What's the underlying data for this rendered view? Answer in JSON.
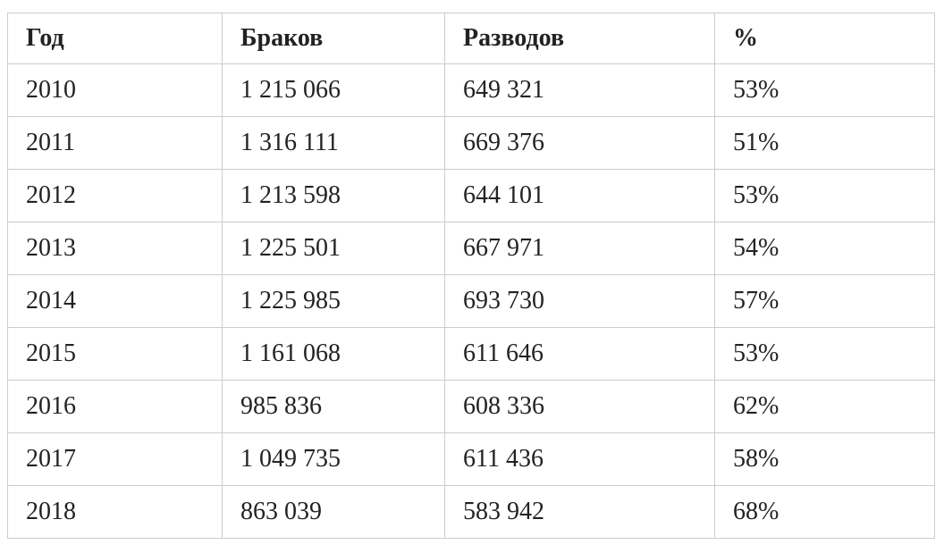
{
  "colors": {
    "background": "#ffffff",
    "border": "#cccccc",
    "text": "#222222"
  },
  "table": {
    "headers": [
      "Год",
      "Браков",
      "Разводов",
      "%"
    ],
    "rows": [
      [
        "2010",
        "1 215 066",
        "649 321",
        "53%"
      ],
      [
        "2011",
        "1 316 111",
        "669 376",
        "51%"
      ],
      [
        "2012",
        "1 213 598",
        "644 101",
        "53%"
      ],
      [
        "2013",
        "1 225 501",
        "667 971",
        "54%"
      ],
      [
        "2014",
        "1 225 985",
        "693 730",
        "57%"
      ],
      [
        "2015",
        "1 161 068",
        "611 646",
        "53%"
      ],
      [
        "2016",
        "985 836",
        "608 336",
        "62%"
      ],
      [
        "2017",
        "1 049 735",
        "611 436",
        "58%"
      ],
      [
        "2018",
        "863 039",
        "583 942",
        "68%"
      ]
    ]
  },
  "chart_data": {
    "type": "table",
    "columns": [
      "Год",
      "Браков",
      "Разводов",
      "%"
    ],
    "rows": [
      {
        "year": 2010,
        "marriages": 1215066,
        "divorces": 649321,
        "percent": 53
      },
      {
        "year": 2011,
        "marriages": 1316111,
        "divorces": 669376,
        "percent": 51
      },
      {
        "year": 2012,
        "marriages": 1213598,
        "divorces": 644101,
        "percent": 53
      },
      {
        "year": 2013,
        "marriages": 1225501,
        "divorces": 667971,
        "percent": 54
      },
      {
        "year": 2014,
        "marriages": 1225985,
        "divorces": 693730,
        "percent": 57
      },
      {
        "year": 2015,
        "marriages": 1161068,
        "divorces": 611646,
        "percent": 53
      },
      {
        "year": 2016,
        "marriages": 985836,
        "divorces": 608336,
        "percent": 62
      },
      {
        "year": 2017,
        "marriages": 1049735,
        "divorces": 611436,
        "percent": 58
      },
      {
        "year": 2018,
        "marriages": 863039,
        "divorces": 583942,
        "percent": 68
      }
    ]
  }
}
